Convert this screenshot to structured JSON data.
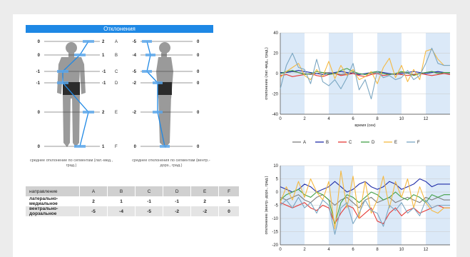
{
  "panel": {
    "title": "Отклонения",
    "caption_left": "среднее отклонение по сегментам (лат.-мед., град.)",
    "caption_right": "среднее отклонения по сегментам (вентр.-дорз., град.)"
  },
  "segments": [
    "A",
    "B",
    "C",
    "D",
    "E",
    "F"
  ],
  "lateral_values": [
    "2",
    "1",
    "-1",
    "-1",
    "2",
    "1"
  ],
  "ventral_values": [
    "-5",
    "-4",
    "-5",
    "-2",
    "-2",
    "0"
  ],
  "left_zero_labels": [
    "0",
    "0",
    "-1",
    "-1",
    "0",
    "0"
  ],
  "right_zero_labels": [
    "0",
    "0",
    "0",
    "0",
    "0",
    "0"
  ],
  "table": {
    "headers": [
      "направление",
      "A",
      "B",
      "C",
      "D",
      "E",
      "F"
    ],
    "rows": [
      {
        "label": "латерально-медиальное",
        "values": [
          "2",
          "1",
          "-1",
          "-1",
          "2",
          "1"
        ]
      },
      {
        "label": "вентрально-дорзальное",
        "values": [
          "-5",
          "-4",
          "-5",
          "-2",
          "-2",
          "0"
        ]
      }
    ]
  },
  "colors": {
    "A": "#7f7f7f",
    "B": "#1f2ca8",
    "C": "#e53935",
    "D": "#43a047",
    "E": "#f5b942",
    "F": "#7aa6c2",
    "accent": "#1e88e5",
    "band": "#dbe9f8"
  },
  "chart_data": [
    {
      "type": "line",
      "title": "",
      "xlabel": "время (сек)",
      "ylabel": "отклонение (лат.-мед., град.)",
      "xlim": [
        0,
        14
      ],
      "ylim": [
        -40,
        40
      ],
      "xticks": [
        0,
        2,
        4,
        6,
        8,
        10,
        12
      ],
      "yticks": [
        -40,
        -20,
        0,
        20,
        40
      ],
      "bands": [
        [
          0,
          2
        ],
        [
          4,
          6
        ],
        [
          8,
          10
        ],
        [
          12,
          14
        ]
      ],
      "legend": "bottom",
      "x": [
        0,
        0.5,
        1,
        1.5,
        2,
        2.5,
        3,
        3.5,
        4,
        4.5,
        5,
        5.5,
        6,
        6.5,
        7,
        7.5,
        8,
        8.5,
        9,
        9.5,
        10,
        10.5,
        11,
        11.5,
        12,
        12.5,
        13,
        13.5,
        14
      ],
      "series": [
        {
          "name": "A",
          "values": [
            0,
            1,
            2,
            1,
            0,
            -1,
            0,
            1,
            1,
            0,
            -1,
            0,
            1,
            0,
            -1,
            0,
            1,
            0,
            -1,
            0,
            1,
            0,
            -1,
            0,
            1,
            2,
            1,
            0,
            0
          ]
        },
        {
          "name": "B",
          "values": [
            1,
            1,
            2,
            3,
            2,
            1,
            0,
            -1,
            0,
            1,
            2,
            1,
            0,
            -1,
            0,
            1,
            2,
            1,
            0,
            -1,
            0,
            1,
            2,
            1,
            0,
            1,
            2,
            1,
            1
          ]
        },
        {
          "name": "C",
          "values": [
            -2,
            -1,
            -3,
            -2,
            -1,
            0,
            -2,
            -3,
            -1,
            0,
            -2,
            -1,
            0,
            -2,
            -3,
            -1,
            0,
            -2,
            -1,
            0,
            -1,
            -2,
            -1,
            0,
            -1,
            -2,
            -1,
            0,
            -1
          ]
        },
        {
          "name": "D",
          "values": [
            0,
            2,
            3,
            1,
            -1,
            0,
            2,
            1,
            -1,
            0,
            3,
            5,
            2,
            0,
            -1,
            1,
            2,
            0,
            -1,
            0,
            2,
            1,
            -2,
            0,
            1,
            2,
            0,
            1,
            1
          ]
        },
        {
          "name": "E",
          "values": [
            -4,
            2,
            6,
            10,
            -2,
            -6,
            4,
            -3,
            12,
            -5,
            8,
            -2,
            4,
            -6,
            -3,
            2,
            -10,
            6,
            15,
            -4,
            8,
            -8,
            4,
            -6,
            22,
            24,
            14,
            8,
            8
          ]
        },
        {
          "name": "F",
          "values": [
            -15,
            8,
            20,
            6,
            4,
            -10,
            14,
            -8,
            -12,
            -6,
            -15,
            -4,
            10,
            -16,
            -6,
            -25,
            2,
            -4,
            -2,
            -6,
            -4,
            3,
            -6,
            -2,
            10,
            25,
            10,
            8,
            8
          ]
        }
      ]
    },
    {
      "type": "line",
      "title": "",
      "xlabel": "",
      "ylabel": "отклонение (вентр.-дорз., град.)",
      "xlim": [
        0,
        14
      ],
      "ylim": [
        -20,
        10
      ],
      "xticks": [
        0,
        2,
        4,
        6,
        8,
        10,
        12
      ],
      "yticks": [
        -20,
        -15,
        -10,
        -5,
        0,
        5,
        10
      ],
      "bands": [
        [
          0,
          2
        ],
        [
          4,
          6
        ],
        [
          8,
          10
        ],
        [
          12,
          14
        ]
      ],
      "x": [
        0,
        0.5,
        1,
        1.5,
        2,
        2.5,
        3,
        3.5,
        4,
        4.5,
        5,
        5.5,
        6,
        6.5,
        7,
        7.5,
        8,
        8.5,
        9,
        9.5,
        10,
        10.5,
        11,
        11.5,
        12,
        12.5,
        13,
        13.5,
        14
      ],
      "series": [
        {
          "name": "A",
          "values": [
            -2,
            -3,
            -2,
            -1,
            -3,
            -4,
            -2,
            -1,
            -3,
            -5,
            -3,
            -2,
            -4,
            -6,
            -3,
            -2,
            -4,
            -3,
            -2,
            -4,
            -3,
            -2,
            -3,
            -4,
            -2,
            -3,
            -2,
            -3,
            -3
          ]
        },
        {
          "name": "B",
          "values": [
            2,
            1,
            0,
            1,
            3,
            2,
            0,
            1,
            2,
            4,
            2,
            0,
            1,
            3,
            4,
            2,
            1,
            2,
            4,
            3,
            1,
            2,
            3,
            5,
            4,
            2,
            3,
            3,
            3
          ]
        },
        {
          "name": "C",
          "values": [
            -4,
            -5,
            -6,
            -5,
            -4,
            -6,
            -7,
            -5,
            -6,
            -12,
            -8,
            -5,
            -6,
            -10,
            -8,
            -6,
            -11,
            -12,
            -8,
            -6,
            -9,
            -7,
            -6,
            -8,
            -7,
            -6,
            -5,
            -6,
            -6
          ]
        },
        {
          "name": "D",
          "values": [
            -3,
            -1,
            0,
            1,
            -1,
            -2,
            0,
            -1,
            -3,
            -12,
            -4,
            -1,
            -2,
            -4,
            -2,
            0,
            -1,
            -3,
            -2,
            0,
            -2,
            -3,
            -1,
            -2,
            -4,
            -1,
            -2,
            -1,
            -1
          ]
        },
        {
          "name": "E",
          "values": [
            -4,
            2,
            -3,
            4,
            -2,
            5,
            0,
            -3,
            4,
            -14,
            8,
            -6,
            6,
            -10,
            4,
            -8,
            -3,
            6,
            -6,
            4,
            -2,
            5,
            -6,
            2,
            -4,
            -7,
            -8,
            -6,
            -6
          ]
        },
        {
          "name": "F",
          "values": [
            -5,
            -3,
            -6,
            -2,
            -6,
            -4,
            -8,
            -3,
            -5,
            -16,
            -6,
            -4,
            -12,
            -8,
            -3,
            -7,
            -8,
            -13,
            -5,
            -7,
            -4,
            -8,
            -6,
            -9,
            -3,
            -6,
            -5,
            -5,
            -5
          ]
        }
      ]
    }
  ]
}
